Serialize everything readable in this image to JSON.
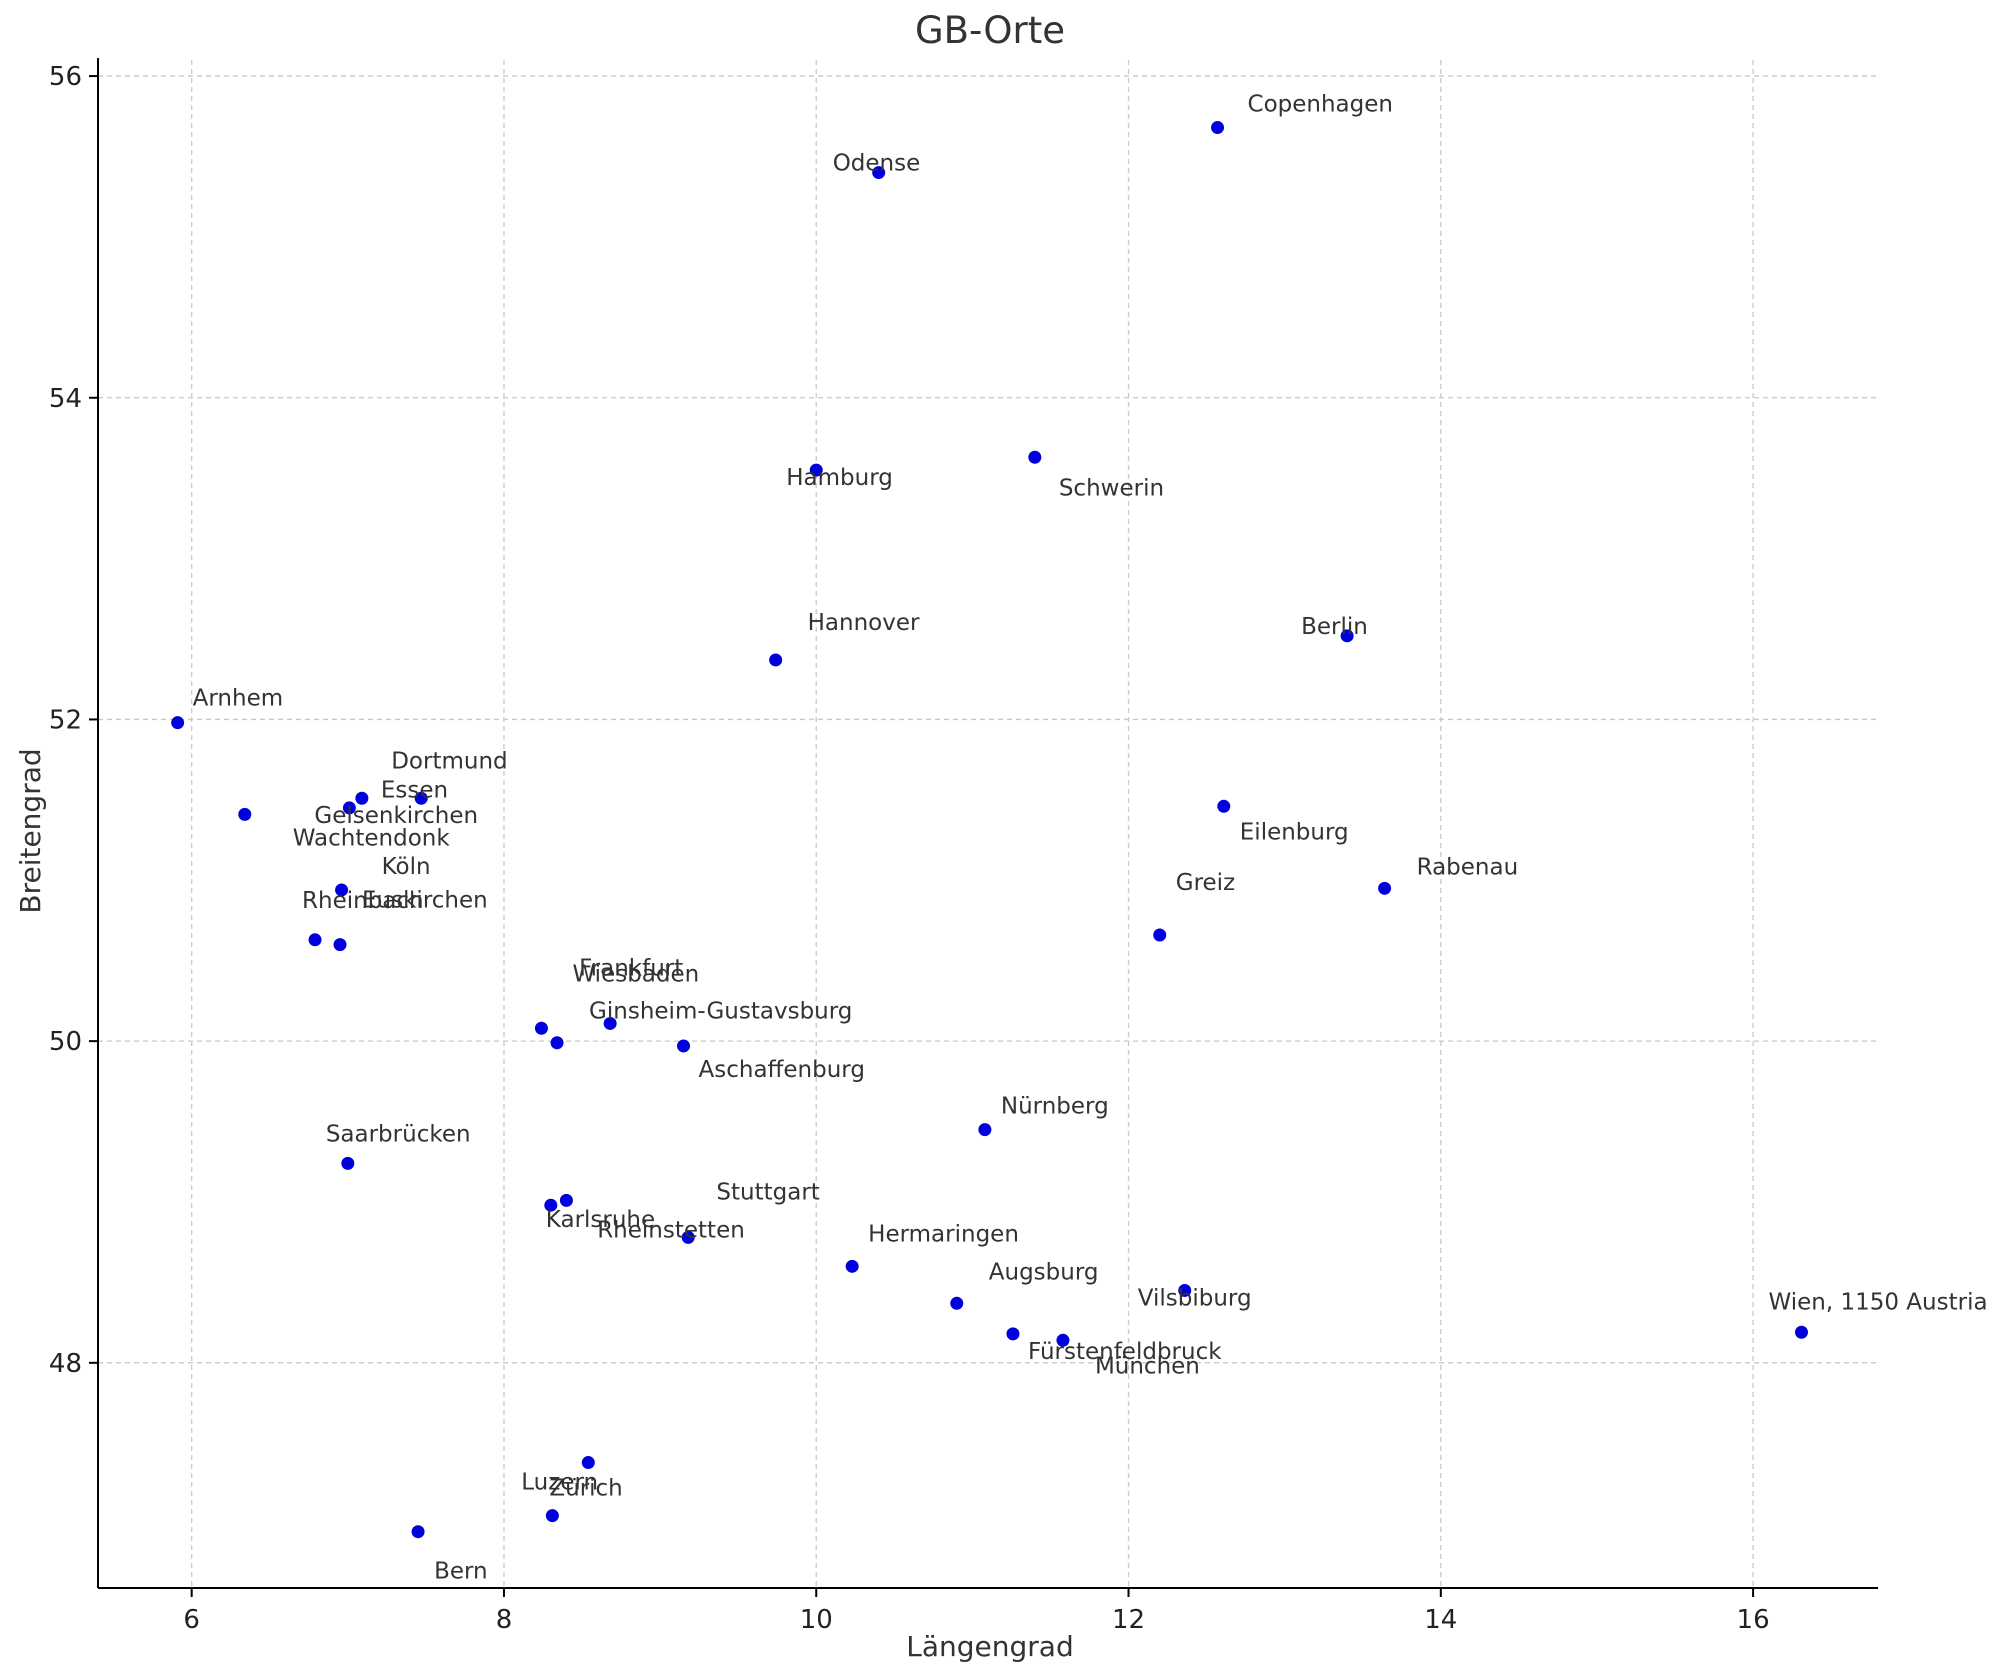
{
  "chart_data": {
    "type": "scatter",
    "title": "GB-Orte",
    "xlabel": "Längengrad",
    "ylabel": "Breitengrad",
    "xlim": [
      5.4,
      16.8
    ],
    "ylim": [
      46.6,
      56.1
    ],
    "xticks": [
      6,
      8,
      10,
      12,
      14,
      16
    ],
    "yticks": [
      48,
      50,
      52,
      54,
      56
    ],
    "grid": true,
    "marker_color": "#0000dd",
    "points": [
      {
        "label": "Copenhagen",
        "x": 12.57,
        "y": 55.68
      },
      {
        "label": "Odense",
        "x": 10.4,
        "y": 55.4
      },
      {
        "label": "Hamburg",
        "x": 10.0,
        "y": 53.55
      },
      {
        "label": "Schwerin",
        "x": 11.4,
        "y": 53.63
      },
      {
        "label": "Hannover",
        "x": 9.74,
        "y": 52.37
      },
      {
        "label": "Berlin",
        "x": 13.4,
        "y": 52.52
      },
      {
        "label": "Arnhem",
        "x": 5.91,
        "y": 51.98
      },
      {
        "label": "Dortmund",
        "x": 7.47,
        "y": 51.51
      },
      {
        "label": "Essen",
        "x": 7.09,
        "y": 51.51
      },
      {
        "label": "Gelsenkirchen",
        "x": 7.01,
        "y": 51.45
      },
      {
        "label": "Wachtendonk",
        "x": 6.34,
        "y": 51.41
      },
      {
        "label": "Eilenburg",
        "x": 12.61,
        "y": 51.46
      },
      {
        "label": "Köln",
        "x": 6.96,
        "y": 50.94
      },
      {
        "label": "Rheinbach",
        "x": 6.79,
        "y": 50.63
      },
      {
        "label": "Euskirchen",
        "x": 6.95,
        "y": 50.6
      },
      {
        "label": "Greiz",
        "x": 12.2,
        "y": 50.66
      },
      {
        "label": "Rabenau",
        "x": 13.64,
        "y": 50.95
      },
      {
        "label": "Frankfurt",
        "x": 8.68,
        "y": 50.11
      },
      {
        "label": "Wiesbaden",
        "x": 8.24,
        "y": 50.08
      },
      {
        "label": "Ginsheim-Gustavsburg",
        "x": 8.34,
        "y": 49.99
      },
      {
        "label": "Aschaffenburg",
        "x": 9.15,
        "y": 49.97
      },
      {
        "label": "Nürnberg",
        "x": 11.08,
        "y": 49.45
      },
      {
        "label": "Saarbrücken",
        "x": 7.0,
        "y": 49.24
      },
      {
        "label": "Stuttgart",
        "x": 8.4,
        "y": 49.01
      },
      {
        "label": "Karlsruhe",
        "x": 8.3,
        "y": 48.98
      },
      {
        "label": "Rheinstetten",
        "x": 9.18,
        "y": 48.78
      },
      {
        "label": "Hermaringen",
        "x": 10.23,
        "y": 48.6
      },
      {
        "label": "Augsburg",
        "x": 10.9,
        "y": 48.37
      },
      {
        "label": "Vilsbiburg",
        "x": 12.36,
        "y": 48.45
      },
      {
        "label": "Fürstenfeldbruck",
        "x": 11.26,
        "y": 48.18
      },
      {
        "label": "München",
        "x": 11.58,
        "y": 48.14
      },
      {
        "label": "Wien, 1150 Austria",
        "x": 16.31,
        "y": 48.19
      },
      {
        "label": "Luzern",
        "x": 8.54,
        "y": 47.38
      },
      {
        "label": "Zürich",
        "x": 8.31,
        "y": 47.05
      },
      {
        "label": "Bern",
        "x": 7.45,
        "y": 46.95
      }
    ]
  }
}
